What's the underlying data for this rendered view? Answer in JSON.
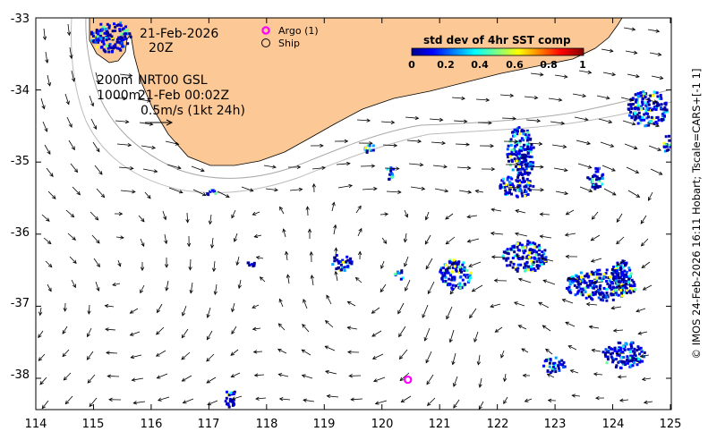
{
  "map": {
    "date": "21-Feb-2026",
    "time": "20Z",
    "depth_line1": "200m",
    "depth_line2": "1000m",
    "product_line1": "NRT00 GSL",
    "product_line2": "21-Feb 00:02Z",
    "scale_label": "0.5m/s (1kt 24h)",
    "credit": "© IMOS 24-Feb-2026 16:11 Hobart; Tscale=CARS+[-1 1]",
    "land_color": "#fcc896",
    "legend": {
      "argo_label": "Argo (1)",
      "ship_label": "Ship",
      "argo_color": "#ff00ff"
    },
    "colorbar": {
      "title": "std dev of 4hr SST comp",
      "ticks": [
        "0",
        "0.2",
        "0.4",
        "0.6",
        "0.8",
        "1"
      ]
    },
    "x_ticks": [
      "114",
      "115",
      "116",
      "117",
      "118",
      "119",
      "120",
      "121",
      "122",
      "123",
      "124",
      "125"
    ],
    "y_ticks": [
      "-33",
      "-34",
      "-35",
      "-36",
      "-37",
      "-38"
    ],
    "argo_floats": [
      {
        "lon": 120.45,
        "lat": -38.02
      }
    ]
  }
}
